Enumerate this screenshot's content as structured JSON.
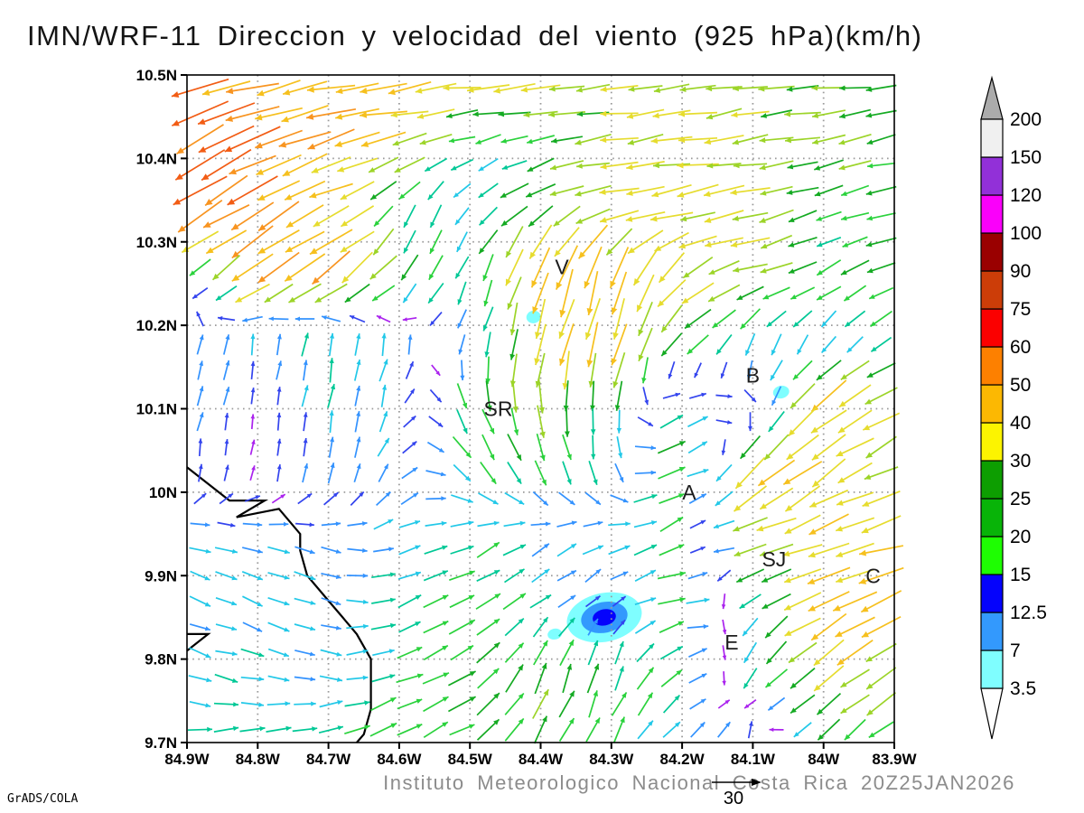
{
  "title": "IMN/WRF-11 Direccion y velocidad del viento (925 hPa)(km/h)",
  "footer": {
    "attribution": "Instituto Meteorologico Nacional Costa Rica 20Z25JAN2026",
    "credit": "GrADS/COLA",
    "reference_vector_label": "30"
  },
  "chart_data": {
    "type": "vector_field",
    "title": "IMN/WRF-11 Direccion y velocidad del viento (925 hPa)(km/h)",
    "units": "km/h",
    "pressure_level": "925 hPa",
    "valid_time": "20Z25JAN2026",
    "axes": {
      "lat_labels": [
        "10.5N",
        "10.4N",
        "10.3N",
        "10.2N",
        "10.1N",
        "10N",
        "9.9N",
        "9.8N",
        "9.7N"
      ],
      "lat_values": [
        10.5,
        10.4,
        10.3,
        10.2,
        10.1,
        10.0,
        9.9,
        9.8,
        9.7
      ],
      "lon_labels": [
        "84.9W",
        "84.8W",
        "84.7W",
        "84.6W",
        "84.5W",
        "84.4W",
        "84.3W",
        "84.2W",
        "84.1W",
        "84W",
        "83.9W"
      ],
      "lon_values": [
        84.9,
        84.8,
        84.7,
        84.6,
        84.5,
        84.4,
        84.3,
        84.2,
        84.1,
        84.0,
        83.9
      ],
      "grid": "dotted"
    },
    "colorbar": {
      "levels": [
        3.5,
        7,
        12.5,
        15,
        20,
        25,
        30,
        40,
        50,
        60,
        75,
        90,
        100,
        120,
        150,
        200
      ],
      "segment_colors": [
        "#7ffeff",
        "#3399fd",
        "#0503fc",
        "#1efe02",
        "#08b408",
        "#0d9e01",
        "#fcf400",
        "#fcb802",
        "#fd8000",
        "#fb0000",
        "#cc3d08",
        "#9a0000",
        "#fa00fa",
        "#9230d8",
        "#f0f0f0"
      ],
      "under_color": "#ffffff",
      "over_color": "#ababab",
      "position": "right"
    },
    "stations": [
      {
        "label": "V",
        "lon": 84.37,
        "lat": 10.27
      },
      {
        "label": "B",
        "lon": 84.1,
        "lat": 10.14
      },
      {
        "label": "SR",
        "lon": 84.46,
        "lat": 10.1
      },
      {
        "label": "A",
        "lon": 84.19,
        "lat": 10.0
      },
      {
        "label": "SJ",
        "lon": 84.07,
        "lat": 9.92
      },
      {
        "label": "C",
        "lon": 83.93,
        "lat": 9.9
      },
      {
        "label": "E",
        "lon": 84.13,
        "lat": 9.82
      }
    ],
    "coastline": {
      "main": [
        [
          84.9,
          10.03
        ],
        [
          84.84,
          9.99
        ],
        [
          84.79,
          9.99
        ],
        [
          84.83,
          9.97
        ],
        [
          84.77,
          9.98
        ],
        [
          84.74,
          9.95
        ],
        [
          84.74,
          9.93
        ],
        [
          84.73,
          9.9
        ],
        [
          84.7,
          9.87
        ],
        [
          84.68,
          9.85
        ],
        [
          84.66,
          9.83
        ],
        [
          84.64,
          9.8
        ],
        [
          84.64,
          9.76
        ],
        [
          84.64,
          9.74
        ],
        [
          84.65,
          9.71
        ],
        [
          84.66,
          9.7
        ]
      ],
      "spit": [
        [
          84.9,
          9.83
        ],
        [
          84.87,
          9.83
        ],
        [
          84.9,
          9.81
        ]
      ]
    },
    "shaded_areas": [
      {
        "lon": 84.31,
        "lat": 9.85,
        "layers": [
          {
            "rx": 42,
            "ry": 27,
            "color": "#7ffeff"
          },
          {
            "rx": 26,
            "ry": 17,
            "color": "#3399fd"
          },
          {
            "rx": 13,
            "ry": 9,
            "color": "#0503fc"
          }
        ]
      },
      {
        "lon": 84.38,
        "lat": 9.83,
        "layers": [
          {
            "rx": 8,
            "ry": 6,
            "color": "#7ffeff"
          }
        ]
      },
      {
        "lon": 84.41,
        "lat": 10.21,
        "layers": [
          {
            "rx": 8,
            "ry": 7,
            "color": "#7ffeff"
          }
        ]
      },
      {
        "lon": 84.06,
        "lat": 10.12,
        "layers": [
          {
            "rx": 9,
            "ry": 7,
            "color": "#7ffeff"
          }
        ]
      }
    ],
    "arrow_palette": {
      "thresholds": [
        6,
        10,
        13,
        16,
        19,
        23,
        27,
        33,
        40,
        48,
        56,
        66
      ],
      "colors": [
        "#aa22ee",
        "#3344ee",
        "#3392fe",
        "#22c8e8",
        "#00c896",
        "#2ad23c",
        "#14aa22",
        "#9cd428",
        "#e6dc2e",
        "#f6c01e",
        "#f89420",
        "#f25c14",
        "#ee2a1e"
      ]
    },
    "wind_field": {
      "units": "km/h",
      "lons": [
        84.9,
        84.8,
        84.7,
        84.6,
        84.5,
        84.4,
        84.3,
        84.2,
        84.1,
        84.0,
        83.9
      ],
      "lats": [
        10.5,
        10.42,
        10.34,
        10.26,
        10.18,
        10.1,
        10.02,
        9.94,
        9.86,
        9.78,
        9.7
      ],
      "u": [
        [
          -52,
          -48,
          -44,
          -42,
          -40,
          -36,
          -30,
          -28,
          -30,
          -28,
          -26
        ],
        [
          -58,
          -50,
          -44,
          -36,
          -14,
          -22,
          -32,
          -34,
          -30,
          -26,
          -24
        ],
        [
          -48,
          -46,
          -38,
          -6,
          -9,
          -26,
          -34,
          -36,
          -32,
          -18,
          -24
        ],
        [
          -6,
          -40,
          -36,
          -14,
          -8,
          -12,
          -14,
          -26,
          -30,
          -18,
          -24
        ],
        [
          2,
          2,
          3,
          2,
          -4,
          -9,
          -11,
          -18,
          -7,
          -6,
          -14
        ],
        [
          2,
          1,
          3,
          4,
          9,
          4,
          -4,
          16,
          8,
          -38,
          -30
        ],
        [
          2,
          1,
          3,
          7,
          14,
          8,
          4,
          26,
          -34,
          -30,
          -28
        ],
        [
          13,
          14,
          12,
          14,
          18,
          11,
          16,
          16,
          -32,
          -36,
          -42
        ],
        [
          12,
          13,
          12,
          16,
          19,
          14,
          2,
          24,
          -14,
          -36,
          -34
        ],
        [
          14,
          15,
          13,
          17,
          21,
          10,
          7,
          14,
          -10,
          -28,
          -24
        ],
        [
          15,
          17,
          19,
          21,
          19,
          11,
          9,
          11,
          4,
          -14,
          -20
        ]
      ],
      "v": [
        [
          -14,
          -10,
          -8,
          -6,
          -5,
          -4,
          -4,
          -3,
          -4,
          -3,
          -3
        ],
        [
          -30,
          -24,
          -16,
          -8,
          -4,
          -6,
          -5,
          -5,
          -5,
          -6,
          -5
        ],
        [
          -30,
          -26,
          -18,
          -14,
          -12,
          -14,
          -8,
          -7,
          -6,
          -8,
          -7
        ],
        [
          -8,
          -28,
          -26,
          -20,
          -16,
          -42,
          -48,
          -22,
          -10,
          -10,
          -8
        ],
        [
          14,
          12,
          17,
          14,
          -13,
          -34,
          -38,
          -18,
          -14,
          -11,
          -9
        ],
        [
          11,
          5,
          15,
          11,
          -22,
          -26,
          -22,
          12,
          -5,
          -26,
          -18
        ],
        [
          9,
          6,
          11,
          9,
          -14,
          -18,
          -14,
          16,
          -30,
          -22,
          -12
        ],
        [
          -4,
          -4,
          -3,
          4,
          8,
          9,
          7,
          8,
          -10,
          -10,
          -12
        ],
        [
          -5,
          -5,
          -4,
          6,
          9,
          10,
          4,
          4,
          -12,
          -20,
          -18
        ],
        [
          -4,
          -3,
          -2,
          7,
          11,
          26,
          20,
          11,
          -16,
          -20,
          -20
        ],
        [
          1,
          3,
          7,
          10,
          11,
          21,
          17,
          9,
          14,
          -16,
          -14
        ]
      ]
    }
  }
}
